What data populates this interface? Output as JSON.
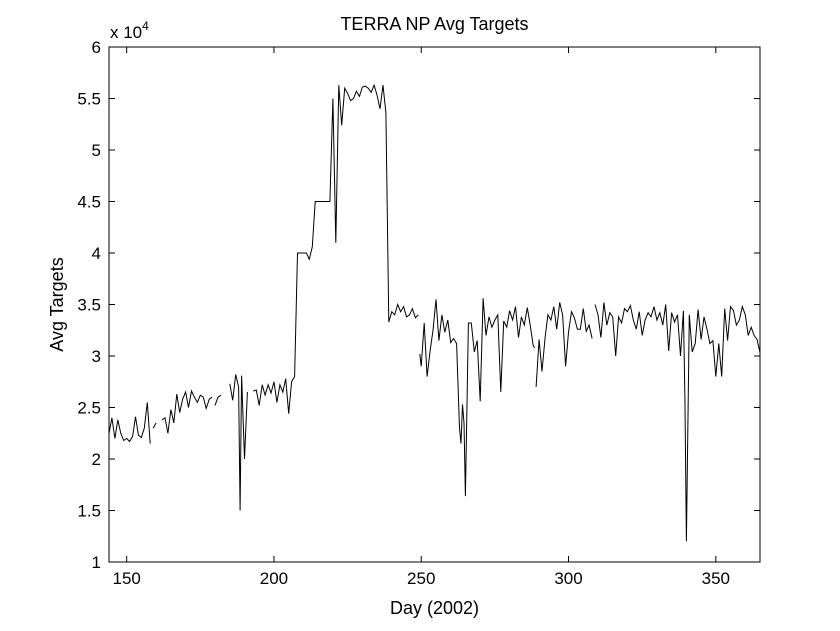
{
  "chart_data": {
    "type": "line",
    "title": "TERRA NP Avg Targets",
    "xlabel": "Day (2002)",
    "ylabel": "Avg Targets",
    "xlim": [
      144,
      365
    ],
    "ylim": [
      10000,
      60000
    ],
    "y_multiplier_text": "x 10",
    "y_multiplier_exp": "4",
    "grid": false,
    "legend": "none",
    "line_color": "#000000",
    "x_ticks": [
      150,
      200,
      250,
      300,
      350
    ],
    "y_ticks": [
      10000,
      15000,
      20000,
      25000,
      30000,
      35000,
      40000,
      45000,
      50000,
      55000,
      60000
    ],
    "y_tick_labels": [
      "1",
      "1.5",
      "2",
      "2.5",
      "3",
      "3.5",
      "4",
      "4.5",
      "5",
      "5.5",
      "6"
    ],
    "series": [
      {
        "segments": [
          [
            [
              144,
              22500
            ],
            [
              145,
              24000
            ],
            [
              146,
              22000
            ],
            [
              147,
              23800
            ],
            [
              148,
              22500
            ],
            [
              149,
              21800
            ],
            [
              150,
              22000
            ],
            [
              151,
              21700
            ],
            [
              152,
              22200
            ],
            [
              153,
              24100
            ],
            [
              154,
              22300
            ],
            [
              155,
              22100
            ],
            [
              156,
              23000
            ],
            [
              157,
              25500
            ],
            [
              158,
              21500
            ]
          ],
          [
            [
              159,
              23000
            ],
            [
              160,
              23500
            ]
          ],
          [
            [
              162,
              23800
            ],
            [
              163,
              24000
            ],
            [
              164,
              22500
            ],
            [
              165,
              24800
            ],
            [
              166,
              23500
            ],
            [
              167,
              26300
            ],
            [
              168,
              24500
            ],
            [
              169,
              25800
            ],
            [
              170,
              26500
            ],
            [
              171,
              25000
            ],
            [
              172,
              26600
            ],
            [
              173,
              26000
            ],
            [
              174,
              25500
            ],
            [
              175,
              26200
            ],
            [
              176,
              26000
            ],
            [
              177,
              24900
            ],
            [
              178,
              25800
            ],
            [
              179,
              26000
            ]
          ],
          [
            [
              180,
              25200
            ],
            [
              181,
              26000
            ],
            [
              182,
              26200
            ]
          ],
          [
            [
              185,
              27300
            ],
            [
              186,
              25700
            ],
            [
              187,
              28200
            ],
            [
              188,
              27000
            ],
            [
              188.5,
              15000
            ],
            [
              189,
              28100
            ],
            [
              190,
              20000
            ],
            [
              191,
              26500
            ]
          ],
          [
            [
              193,
              26600
            ],
            [
              194,
              26700
            ],
            [
              195,
              25200
            ],
            [
              196,
              27200
            ],
            [
              197,
              26200
            ],
            [
              198,
              27200
            ],
            [
              199,
              26400
            ],
            [
              200,
              27500
            ],
            [
              201,
              25500
            ],
            [
              202,
              27200
            ],
            [
              203,
              26500
            ],
            [
              204,
              27800
            ],
            [
              205,
              24400
            ],
            [
              206,
              27500
            ],
            [
              207,
              28000
            ],
            [
              208,
              40000
            ],
            [
              209,
              40000
            ],
            [
              210,
              40000
            ],
            [
              211,
              40000
            ],
            [
              212,
              39400
            ],
            [
              213,
              40600
            ],
            [
              214,
              45000
            ],
            [
              215,
              45000
            ],
            [
              216,
              45000
            ],
            [
              217,
              45000
            ],
            [
              218,
              45000
            ],
            [
              219,
              45000
            ],
            [
              220,
              55000
            ],
            [
              221,
              41000
            ],
            [
              222,
              56300
            ],
            [
              223,
              52400
            ],
            [
              224,
              56000
            ],
            [
              225,
              55500
            ],
            [
              226,
              54800
            ],
            [
              227,
              55000
            ],
            [
              228,
              55700
            ],
            [
              229,
              55200
            ],
            [
              230,
              56100
            ],
            [
              231,
              56200
            ],
            [
              232,
              56000
            ],
            [
              233,
              55600
            ],
            [
              234,
              56300
            ],
            [
              235,
              55300
            ],
            [
              236,
              54000
            ],
            [
              237,
              56300
            ],
            [
              238,
              53600
            ],
            [
              239,
              33300
            ],
            [
              240,
              34300
            ],
            [
              241,
              34000
            ],
            [
              242,
              35000
            ],
            [
              243,
              34300
            ],
            [
              244,
              34800
            ],
            [
              245,
              33800
            ],
            [
              246,
              34000
            ],
            [
              247,
              34600
            ],
            [
              248,
              33700
            ],
            [
              249,
              34000
            ]
          ],
          [
            [
              249.5,
              30200
            ],
            [
              250,
              29000
            ],
            [
              251,
              33200
            ],
            [
              252,
              28000
            ],
            [
              253,
              30500
            ],
            [
              254,
              32500
            ],
            [
              255,
              35500
            ],
            [
              256,
              31500
            ],
            [
              257,
              34000
            ],
            [
              258,
              32300
            ],
            [
              259,
              33500
            ],
            [
              260,
              31300
            ],
            [
              261,
              31700
            ],
            [
              262,
              31200
            ],
            [
              263,
              23000
            ],
            [
              263.5,
              21500
            ],
            [
              264,
              25300
            ],
            [
              264.5,
              23500
            ],
            [
              265,
              16400
            ],
            [
              266,
              33200
            ],
            [
              267,
              33200
            ],
            [
              268,
              30400
            ],
            [
              269,
              31500
            ],
            [
              270,
              25600
            ],
            [
              271,
              35600
            ],
            [
              272,
              32000
            ],
            [
              273,
              33800
            ],
            [
              274,
              32800
            ],
            [
              275,
              33500
            ],
            [
              276,
              34000
            ],
            [
              277,
              26500
            ],
            [
              278,
              33400
            ],
            [
              279,
              32800
            ],
            [
              280,
              34400
            ],
            [
              281,
              33500
            ],
            [
              282,
              34800
            ],
            [
              283,
              31800
            ],
            [
              284,
              33800
            ],
            [
              285,
              33000
            ],
            [
              286,
              34700
            ],
            [
              287,
              33000
            ],
            [
              288,
              31000
            ],
            [
              288.5,
              30800
            ]
          ],
          [
            [
              289,
              27000
            ],
            [
              290,
              31600
            ],
            [
              291,
              28500
            ],
            [
              292,
              31700
            ],
            [
              293,
              34000
            ],
            [
              294,
              33500
            ],
            [
              295,
              34800
            ],
            [
              296,
              32600
            ],
            [
              297,
              35200
            ],
            [
              298,
              34000
            ],
            [
              299,
              29000
            ],
            [
              300,
              32300
            ],
            [
              301,
              34300
            ],
            [
              302,
              33700
            ],
            [
              303,
              32600
            ],
            [
              304,
              32600
            ],
            [
              305,
              34600
            ],
            [
              306,
              32400
            ],
            [
              307,
              33000
            ],
            [
              308,
              31700
            ]
          ],
          [
            [
              309,
              35000
            ],
            [
              310,
              34000
            ],
            [
              311,
              31800
            ],
            [
              312,
              35200
            ],
            [
              313,
              33000
            ],
            [
              314,
              34200
            ],
            [
              315,
              33800
            ],
            [
              316,
              30000
            ],
            [
              317,
              33800
            ],
            [
              318,
              33200
            ],
            [
              319,
              34600
            ],
            [
              320,
              34300
            ],
            [
              321,
              34900
            ],
            [
              322,
              33500
            ],
            [
              323,
              32600
            ],
            [
              324,
              34300
            ],
            [
              325,
              32000
            ],
            [
              326,
              33500
            ],
            [
              327,
              34200
            ],
            [
              328,
              33800
            ],
            [
              329,
              34800
            ],
            [
              330,
              33500
            ],
            [
              331,
              34200
            ],
            [
              332,
              33000
            ],
            [
              333,
              35000
            ],
            [
              334,
              30500
            ],
            [
              335,
              34200
            ],
            [
              336,
              33300
            ],
            [
              337,
              34000
            ],
            [
              338,
              30000
            ],
            [
              339,
              34400
            ],
            [
              339.5,
              26000
            ],
            [
              340,
              12000
            ],
            [
              341,
              34000
            ],
            [
              342,
              30400
            ],
            [
              343,
              31200
            ],
            [
              344,
              34500
            ],
            [
              345,
              31600
            ],
            [
              346,
              33800
            ],
            [
              347,
              32600
            ],
            [
              348,
              31200
            ],
            [
              349,
              31500
            ],
            [
              350,
              28000
            ],
            [
              351,
              31200
            ],
            [
              352,
              28000
            ],
            [
              353,
              34600
            ],
            [
              354,
              31500
            ],
            [
              355,
              34800
            ],
            [
              356,
              34400
            ],
            [
              357,
              33000
            ],
            [
              358,
              33500
            ],
            [
              359,
              34800
            ],
            [
              360,
              34000
            ],
            [
              361,
              32000
            ],
            [
              362,
              32800
            ],
            [
              363,
              32000
            ],
            [
              364,
              31600
            ],
            [
              365,
              30300
            ]
          ]
        ]
      }
    ]
  }
}
